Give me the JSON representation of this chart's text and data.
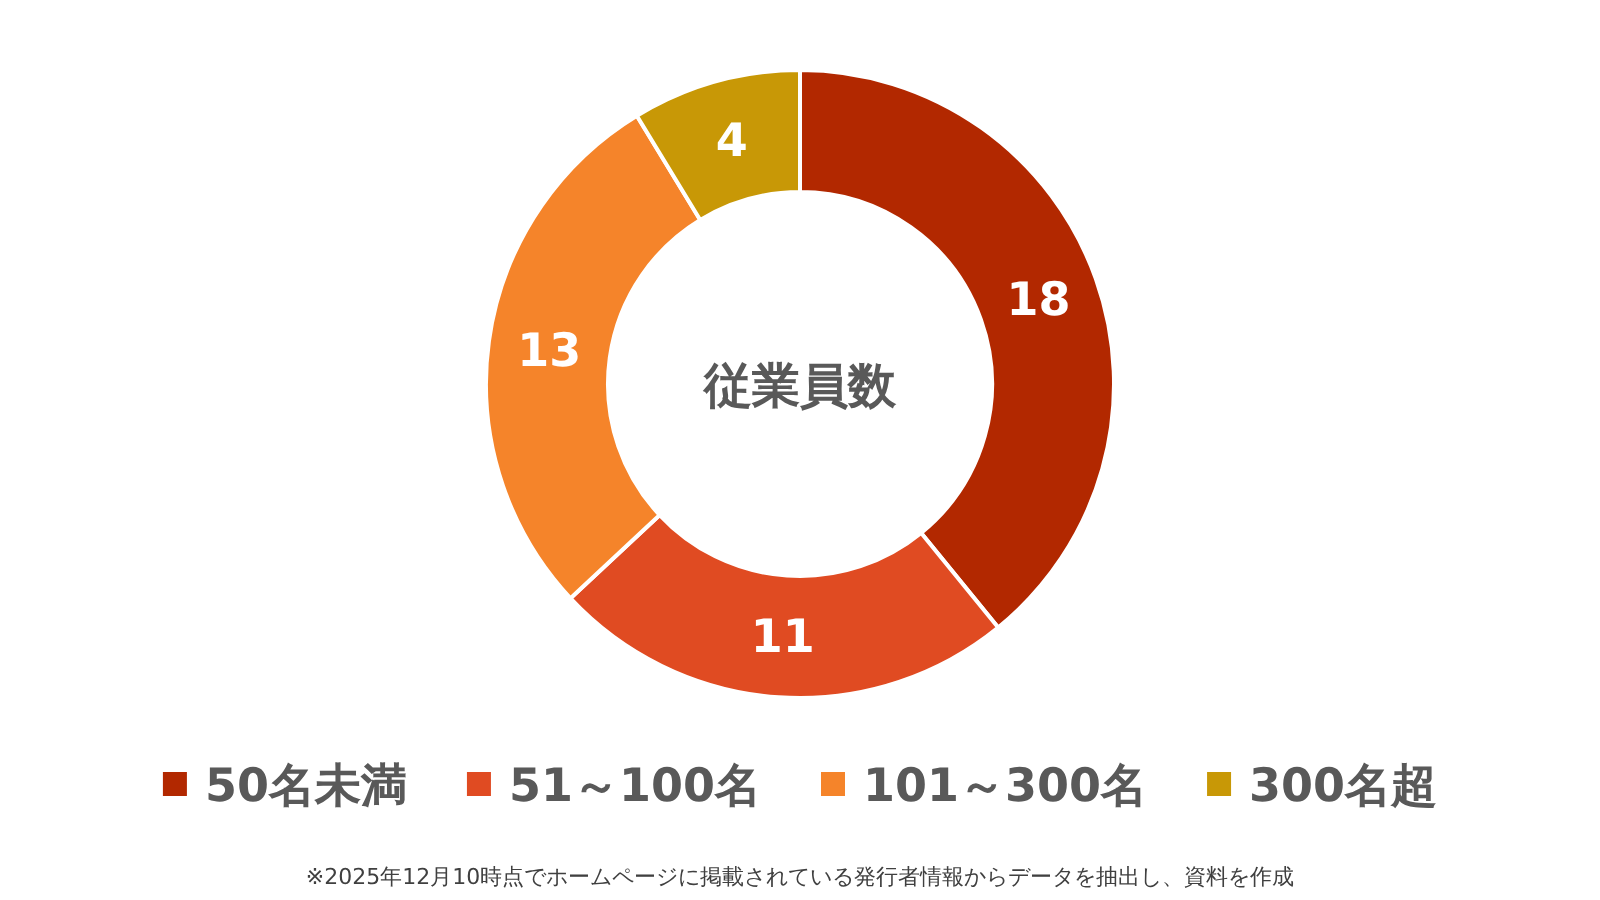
{
  "chart_data": {
    "type": "donut",
    "title": "従業員数",
    "categories": [
      "50名未満",
      "51～100名",
      "101～300名",
      "300名超"
    ],
    "values": [
      18,
      11,
      13,
      4
    ],
    "colors": [
      "#b22800",
      "#e04b22",
      "#f5842a",
      "#c89806"
    ],
    "data_labels": true,
    "legend": "bottom",
    "annotations": [
      "※2025年12月10時点でホームページに掲載されている発行者情報からデータを抽出し、資料を作成"
    ]
  }
}
